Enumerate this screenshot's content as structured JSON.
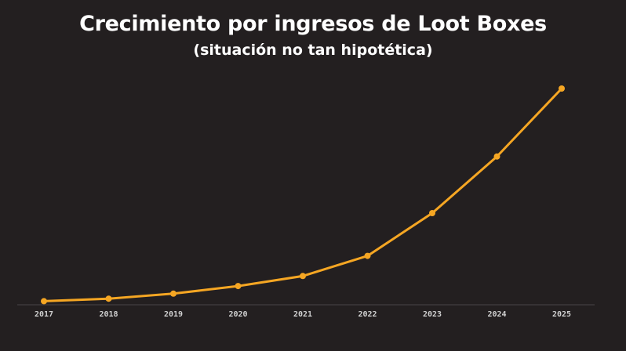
{
  "header": {
    "title": "Crecimiento por ingresos de Loot Boxes",
    "subtitle": "(situación no tan hipotética)"
  },
  "colors": {
    "background": "#231f20",
    "line": "#f5a623",
    "axis": "#4a4647",
    "text": "#ffffff",
    "tick": "#d0d0d0"
  },
  "chart_data": {
    "type": "line",
    "title": "Crecimiento por ingresos de Loot Boxes",
    "subtitle": "(situación no tan hipotética)",
    "xlabel": "",
    "ylabel": "",
    "categories": [
      "2017",
      "2018",
      "2019",
      "2020",
      "2021",
      "2022",
      "2023",
      "2024",
      "2025"
    ],
    "series": [
      {
        "values": [
          1,
          3,
          7,
          13,
          21,
          37,
          71,
          116,
          170
        ]
      }
    ],
    "ylim": [
      0,
      170
    ],
    "grid": false,
    "y_axis_visible": false,
    "legend": "none"
  }
}
